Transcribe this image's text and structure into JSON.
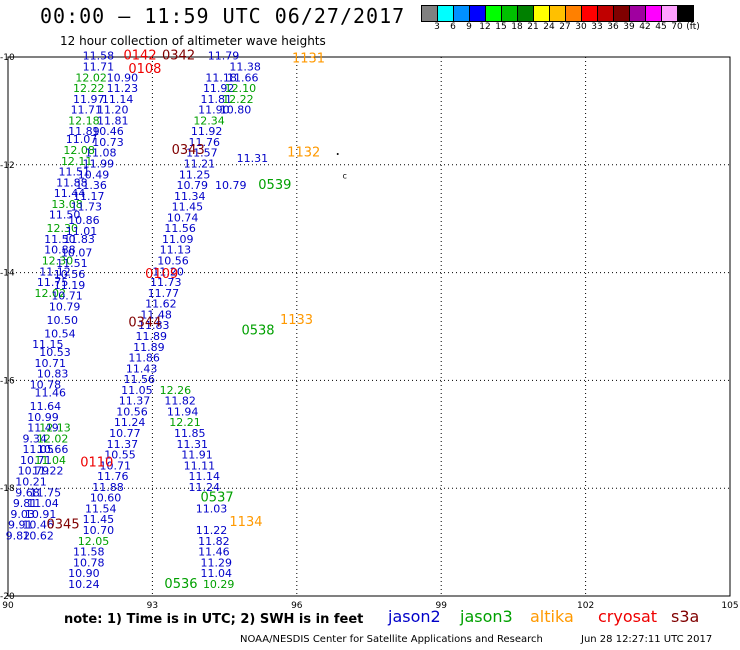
{
  "header": {
    "title": "00:00 – 11:59 UTC 06/27/2017",
    "subtitle": "12 hour collection of altimeter wave heights"
  },
  "color_scale": {
    "colors": [
      "#808080",
      "#00ffff",
      "#0090ff",
      "#0000ff",
      "#00ff00",
      "#00c000",
      "#008000",
      "#ffff00",
      "#ffc000",
      "#ff8000",
      "#ff0000",
      "#c00000",
      "#800000",
      "#a000a0",
      "#ff00ff",
      "#ffa0ff",
      "#000000"
    ],
    "labels": [
      "3",
      "6",
      "9",
      "12",
      "15",
      "18",
      "21",
      "24",
      "27",
      "30",
      "33",
      "36",
      "39",
      "42",
      "45",
      "70",
      "(ft)"
    ]
  },
  "axes": {
    "lon_ticks": [
      "90",
      "93",
      "96",
      "99",
      "102",
      "105"
    ],
    "lat_ticks": [
      "-10",
      "-12",
      "-14",
      "-16",
      "-18",
      "-20"
    ]
  },
  "satellites": {
    "jason2": {
      "label": "jason2",
      "color": "#0000c8"
    },
    "jason3": {
      "label": "jason3",
      "color": "#00a000"
    },
    "altika": {
      "label": "altika",
      "color": "#ff9900"
    },
    "cryosat": {
      "label": "cryosat",
      "color": "#ee0000"
    },
    "s3a": {
      "label": "s3a",
      "color": "#800000"
    }
  },
  "pass_times": [
    {
      "text": "0142",
      "lon": 92.4,
      "lat": -10.05,
      "sat": "cryosat"
    },
    {
      "text": "0342",
      "lon": 93.2,
      "lat": -10.05,
      "sat": "s3a"
    },
    {
      "text": "0108",
      "lon": 92.5,
      "lat": -10.3,
      "sat": "cryosat"
    },
    {
      "text": "1131",
      "lon": 95.9,
      "lat": -10.1,
      "sat": "altika"
    },
    {
      "text": "0343",
      "lon": 93.4,
      "lat": -11.8,
      "sat": "s3a"
    },
    {
      "text": "1132",
      "lon": 95.8,
      "lat": -11.85,
      "sat": "altika"
    },
    {
      "text": "0539",
      "lon": 95.2,
      "lat": -12.45,
      "sat": "jason3"
    },
    {
      "text": "0109",
      "lon": 92.85,
      "lat": -14.1,
      "sat": "cryosat"
    },
    {
      "text": "0344",
      "lon": 92.5,
      "lat": -15.0,
      "sat": "s3a"
    },
    {
      "text": "1133",
      "lon": 95.65,
      "lat": -14.95,
      "sat": "altika"
    },
    {
      "text": "0538",
      "lon": 94.85,
      "lat": -15.15,
      "sat": "jason3"
    },
    {
      "text": "0110",
      "lon": 91.5,
      "lat": -17.6,
      "sat": "cryosat"
    },
    {
      "text": "0537",
      "lon": 94.0,
      "lat": -18.25,
      "sat": "jason3"
    },
    {
      "text": "0345",
      "lon": 90.8,
      "lat": -18.75,
      "sat": "s3a"
    },
    {
      "text": "1134",
      "lon": 94.6,
      "lat": -18.7,
      "sat": "altika"
    },
    {
      "text": "0536",
      "lon": 93.25,
      "lat": -19.85,
      "sat": "jason3"
    }
  ],
  "wave_heights": [
    {
      "v": "11.58",
      "lon": 91.55,
      "lat": -10.05,
      "sat": "jason2"
    },
    {
      "v": "11.71",
      "lon": 91.55,
      "lat": -10.25,
      "sat": "jason2"
    },
    {
      "v": "12.02",
      "lon": 91.4,
      "lat": -10.45,
      "sat": "jason3"
    },
    {
      "v": "10.90",
      "lon": 92.05,
      "lat": -10.45,
      "sat": "jason2"
    },
    {
      "v": "12.22",
      "lon": 91.35,
      "lat": -10.65,
      "sat": "jason3"
    },
    {
      "v": "11.23",
      "lon": 92.05,
      "lat": -10.65,
      "sat": "jason2"
    },
    {
      "v": "11.97",
      "lon": 91.35,
      "lat": -10.85,
      "sat": "jason2"
    },
    {
      "v": "11.14",
      "lon": 91.95,
      "lat": -10.85,
      "sat": "jason2"
    },
    {
      "v": "11.71",
      "lon": 91.3,
      "lat": -11.05,
      "sat": "jason2"
    },
    {
      "v": "11.20",
      "lon": 91.85,
      "lat": -11.05,
      "sat": "jason2"
    },
    {
      "v": "12.18",
      "lon": 91.25,
      "lat": -11.25,
      "sat": "jason3"
    },
    {
      "v": "11.81",
      "lon": 91.85,
      "lat": -11.25,
      "sat": "jason2"
    },
    {
      "v": "11.89",
      "lon": 91.25,
      "lat": -11.45,
      "sat": "jason2"
    },
    {
      "v": "10.46",
      "lon": 91.75,
      "lat": -11.45,
      "sat": "jason2"
    },
    {
      "v": "11.07",
      "lon": 91.2,
      "lat": -11.6,
      "sat": "jason2"
    },
    {
      "v": "10.73",
      "lon": 91.75,
      "lat": -11.65,
      "sat": "jason2"
    },
    {
      "v": "12.08",
      "lon": 91.15,
      "lat": -11.8,
      "sat": "jason3"
    },
    {
      "v": "11.08",
      "lon": 91.6,
      "lat": -11.85,
      "sat": "jason2"
    },
    {
      "v": "12.11",
      "lon": 91.1,
      "lat": -12.0,
      "sat": "jason3"
    },
    {
      "v": "11.99",
      "lon": 91.55,
      "lat": -12.05,
      "sat": "jason2"
    },
    {
      "v": "11.51",
      "lon": 91.05,
      "lat": -12.2,
      "sat": "jason2"
    },
    {
      "v": "10.49",
      "lon": 91.45,
      "lat": -12.25,
      "sat": "jason2"
    },
    {
      "v": "11.88",
      "lon": 91.0,
      "lat": -12.4,
      "sat": "jason2"
    },
    {
      "v": "11.36",
      "lon": 91.4,
      "lat": -12.45,
      "sat": "jason2"
    },
    {
      "v": "11.44",
      "lon": 90.95,
      "lat": -12.6,
      "sat": "jason2"
    },
    {
      "v": "11.17",
      "lon": 91.35,
      "lat": -12.65,
      "sat": "jason2"
    },
    {
      "v": "13.08",
      "lon": 90.9,
      "lat": -12.8,
      "sat": "jason3"
    },
    {
      "v": "11.73",
      "lon": 91.3,
      "lat": -12.85,
      "sat": "jason2"
    },
    {
      "v": "11.50",
      "lon": 90.85,
      "lat": -13.0,
      "sat": "jason2"
    },
    {
      "v": "10.86",
      "lon": 91.25,
      "lat": -13.1,
      "sat": "jason2"
    },
    {
      "v": "12.30",
      "lon": 90.8,
      "lat": -13.25,
      "sat": "jason3"
    },
    {
      "v": "11.01",
      "lon": 91.2,
      "lat": -13.3,
      "sat": "jason2"
    },
    {
      "v": "11.50",
      "lon": 90.75,
      "lat": -13.45,
      "sat": "jason2"
    },
    {
      "v": "11.83",
      "lon": 91.15,
      "lat": -13.45,
      "sat": "jason2"
    },
    {
      "v": "10.88",
      "lon": 90.75,
      "lat": -13.65,
      "sat": "jason2"
    },
    {
      "v": "10.07",
      "lon": 91.1,
      "lat": -13.7,
      "sat": "jason2"
    },
    {
      "v": "12.30",
      "lon": 90.7,
      "lat": -13.85,
      "sat": "jason3"
    },
    {
      "v": "11.51",
      "lon": 91.0,
      "lat": -13.9,
      "sat": "jason2"
    },
    {
      "v": "11.12",
      "lon": 90.65,
      "lat": -14.05,
      "sat": "jason2"
    },
    {
      "v": "10.56",
      "lon": 90.95,
      "lat": -14.1,
      "sat": "jason2"
    },
    {
      "v": "11.75",
      "lon": 90.6,
      "lat": -14.25,
      "sat": "jason2"
    },
    {
      "v": "11.19",
      "lon": 90.95,
      "lat": -14.3,
      "sat": "jason2"
    },
    {
      "v": "12.02",
      "lon": 90.55,
      "lat": -14.45,
      "sat": "jason3"
    },
    {
      "v": "10.71",
      "lon": 90.9,
      "lat": -14.5,
      "sat": "jason2"
    },
    {
      "v": "10.79",
      "lon": 90.85,
      "lat": -14.7,
      "sat": "jason2"
    },
    {
      "v": "10.50",
      "lon": 90.8,
      "lat": -14.95,
      "sat": "jason2"
    },
    {
      "v": "10.54",
      "lon": 90.75,
      "lat": -15.2,
      "sat": "jason2"
    },
    {
      "v": "11.15",
      "lon": 90.5,
      "lat": -15.4,
      "sat": "jason2"
    },
    {
      "v": "10.53",
      "lon": 90.65,
      "lat": -15.55,
      "sat": "jason2"
    },
    {
      "v": "10.71",
      "lon": 90.55,
      "lat": -15.75,
      "sat": "jason2"
    },
    {
      "v": "10.83",
      "lon": 90.6,
      "lat": -15.95,
      "sat": "jason2"
    },
    {
      "v": "10.78",
      "lon": 90.45,
      "lat": -16.15,
      "sat": "jason2"
    },
    {
      "v": "11.46",
      "lon": 90.55,
      "lat": -16.3,
      "sat": "jason2"
    },
    {
      "v": "11.64",
      "lon": 90.45,
      "lat": -16.55,
      "sat": "jason2"
    },
    {
      "v": "10.99",
      "lon": 90.4,
      "lat": -16.75,
      "sat": "jason2"
    },
    {
      "v": "11.49",
      "lon": 90.4,
      "lat": -16.95,
      "sat": "jason2"
    },
    {
      "v": "12.13",
      "lon": 90.65,
      "lat": -16.95,
      "sat": "jason3"
    },
    {
      "v": "9.34",
      "lon": 90.3,
      "lat": -17.15,
      "sat": "jason2"
    },
    {
      "v": "12.02",
      "lon": 90.6,
      "lat": -17.15,
      "sat": "jason3"
    },
    {
      "v": "11.05",
      "lon": 90.3,
      "lat": -17.35,
      "sat": "jason2"
    },
    {
      "v": "10.66",
      "lon": 90.6,
      "lat": -17.35,
      "sat": "jason2"
    },
    {
      "v": "10.71",
      "lon": 90.25,
      "lat": -17.55,
      "sat": "jason2"
    },
    {
      "v": "11.04",
      "lon": 90.55,
      "lat": -17.55,
      "sat": "jason3"
    },
    {
      "v": "10.79",
      "lon": 90.2,
      "lat": -17.75,
      "sat": "jason2"
    },
    {
      "v": "11.22",
      "lon": 90.5,
      "lat": -17.75,
      "sat": "jason2"
    },
    {
      "v": "10.21",
      "lon": 90.15,
      "lat": -17.95,
      "sat": "jason2"
    },
    {
      "v": "9.68",
      "lon": 90.15,
      "lat": -18.15,
      "sat": "jason2"
    },
    {
      "v": "11.75",
      "lon": 90.45,
      "lat": -18.15,
      "sat": "jason2"
    },
    {
      "v": "9.81",
      "lon": 90.1,
      "lat": -18.35,
      "sat": "jason2"
    },
    {
      "v": "11.04",
      "lon": 90.4,
      "lat": -18.35,
      "sat": "jason2"
    },
    {
      "v": "9.03",
      "lon": 90.05,
      "lat": -18.55,
      "sat": "jason2"
    },
    {
      "v": "10.91",
      "lon": 90.35,
      "lat": -18.55,
      "sat": "jason2"
    },
    {
      "v": "9.91",
      "lon": 90.0,
      "lat": -18.75,
      "sat": "jason2"
    },
    {
      "v": "10.46",
      "lon": 90.3,
      "lat": -18.75,
      "sat": "jason2"
    },
    {
      "v": "9.82",
      "lon": 89.95,
      "lat": -18.95,
      "sat": "jason2"
    },
    {
      "v": "10.62",
      "lon": 90.3,
      "lat": -18.95,
      "sat": "jason2"
    },
    {
      "v": "10.24",
      "lon": 91.25,
      "lat": -19.85,
      "sat": "jason2"
    },
    {
      "v": "10.90",
      "lon": 91.25,
      "lat": -19.65,
      "sat": "jason2"
    },
    {
      "v": "10.78",
      "lon": 91.35,
      "lat": -19.45,
      "sat": "jason2"
    },
    {
      "v": "11.58",
      "lon": 91.35,
      "lat": -19.25,
      "sat": "jason2"
    },
    {
      "v": "12.05",
      "lon": 91.45,
      "lat": -19.05,
      "sat": "jason3"
    },
    {
      "v": "10.70",
      "lon": 91.55,
      "lat": -18.85,
      "sat": "jason2"
    },
    {
      "v": "11.45",
      "lon": 91.55,
      "lat": -18.65,
      "sat": "jason2"
    },
    {
      "v": "11.54",
      "lon": 91.6,
      "lat": -18.45,
      "sat": "jason2"
    },
    {
      "v": "10.60",
      "lon": 91.7,
      "lat": -18.25,
      "sat": "jason2"
    },
    {
      "v": "11.88",
      "lon": 91.75,
      "lat": -18.05,
      "sat": "jason2"
    },
    {
      "v": "11.76",
      "lon": 91.85,
      "lat": -17.85,
      "sat": "jason2"
    },
    {
      "v": "10.71",
      "lon": 91.9,
      "lat": -17.65,
      "sat": "jason2"
    },
    {
      "v": "10.55",
      "lon": 92.0,
      "lat": -17.45,
      "sat": "jason2"
    },
    {
      "v": "11.37",
      "lon": 92.05,
      "lat": -17.25,
      "sat": "jason2"
    },
    {
      "v": "10.77",
      "lon": 92.1,
      "lat": -17.05,
      "sat": "jason2"
    },
    {
      "v": "11.24",
      "lon": 92.2,
      "lat": -16.85,
      "sat": "jason2"
    },
    {
      "v": "10.56",
      "lon": 92.25,
      "lat": -16.65,
      "sat": "jason2"
    },
    {
      "v": "11.37",
      "lon": 92.3,
      "lat": -16.45,
      "sat": "jason2"
    },
    {
      "v": "11.05",
      "lon": 92.35,
      "lat": -16.25,
      "sat": "jason2"
    },
    {
      "v": "11.56",
      "lon": 92.4,
      "lat": -16.05,
      "sat": "jason2"
    },
    {
      "v": "11.43",
      "lon": 92.45,
      "lat": -15.85,
      "sat": "jason2"
    },
    {
      "v": "11.86",
      "lon": 92.5,
      "lat": -15.65,
      "sat": "jason2"
    },
    {
      "v": "11.89",
      "lon": 92.6,
      "lat": -15.45,
      "sat": "jason2"
    },
    {
      "v": "11.89",
      "lon": 92.65,
      "lat": -15.25,
      "sat": "jason2"
    },
    {
      "v": "11.83",
      "lon": 92.7,
      "lat": -15.05,
      "sat": "jason2"
    },
    {
      "v": "11.48",
      "lon": 92.75,
      "lat": -14.85,
      "sat": "jason2"
    },
    {
      "v": "11.62",
      "lon": 92.85,
      "lat": -14.65,
      "sat": "jason2"
    },
    {
      "v": "11.77",
      "lon": 92.9,
      "lat": -14.45,
      "sat": "jason2"
    },
    {
      "v": "11.73",
      "lon": 92.95,
      "lat": -14.25,
      "sat": "jason2"
    },
    {
      "v": "11.20",
      "lon": 93.0,
      "lat": -14.05,
      "sat": "jason2"
    },
    {
      "v": "10.56",
      "lon": 93.1,
      "lat": -13.85,
      "sat": "jason2"
    },
    {
      "v": "11.13",
      "lon": 93.15,
      "lat": -13.65,
      "sat": "jason2"
    },
    {
      "v": "11.09",
      "lon": 93.2,
      "lat": -13.45,
      "sat": "jason2"
    },
    {
      "v": "11.56",
      "lon": 93.25,
      "lat": -13.25,
      "sat": "jason2"
    },
    {
      "v": "10.74",
      "lon": 93.3,
      "lat": -13.05,
      "sat": "jason2"
    },
    {
      "v": "11.45",
      "lon": 93.4,
      "lat": -12.85,
      "sat": "jason2"
    },
    {
      "v": "11.34",
      "lon": 93.45,
      "lat": -12.65,
      "sat": "jason2"
    },
    {
      "v": "10.79",
      "lon": 93.5,
      "lat": -12.45,
      "sat": "jason2"
    },
    {
      "v": "11.25",
      "lon": 93.55,
      "lat": -12.25,
      "sat": "jason2"
    },
    {
      "v": "11.21",
      "lon": 93.65,
      "lat": -12.05,
      "sat": "jason2"
    },
    {
      "v": "11.57",
      "lon": 93.7,
      "lat": -11.85,
      "sat": "jason2"
    },
    {
      "v": "11.76",
      "lon": 93.75,
      "lat": -11.65,
      "sat": "jason2"
    },
    {
      "v": "11.92",
      "lon": 93.8,
      "lat": -11.45,
      "sat": "jason2"
    },
    {
      "v": "12.34",
      "lon": 93.85,
      "lat": -11.25,
      "sat": "jason3"
    },
    {
      "v": "11.90",
      "lon": 93.95,
      "lat": -11.05,
      "sat": "jason2"
    },
    {
      "v": "11.81",
      "lon": 94.0,
      "lat": -10.85,
      "sat": "jason2"
    },
    {
      "v": "11.92",
      "lon": 94.05,
      "lat": -10.65,
      "sat": "jason2"
    },
    {
      "v": "11.18",
      "lon": 94.1,
      "lat": -10.45,
      "sat": "jason2"
    },
    {
      "v": "11.79",
      "lon": 94.15,
      "lat": -10.05,
      "sat": "jason2"
    },
    {
      "v": "11.38",
      "lon": 94.6,
      "lat": -10.25,
      "sat": "jason2"
    },
    {
      "v": "11.66",
      "lon": 94.55,
      "lat": -10.45,
      "sat": "jason2"
    },
    {
      "v": "12.10",
      "lon": 94.5,
      "lat": -10.65,
      "sat": "jason3"
    },
    {
      "v": "12.22",
      "lon": 94.45,
      "lat": -10.85,
      "sat": "jason3"
    },
    {
      "v": "10.80",
      "lon": 94.4,
      "lat": -11.05,
      "sat": "jason2"
    },
    {
      "v": "11.31",
      "lon": 94.75,
      "lat": -11.95,
      "sat": "jason2"
    },
    {
      "v": "10.79",
      "lon": 94.3,
      "lat": -12.45,
      "sat": "jason2"
    },
    {
      "v": "11.03",
      "lon": 93.9,
      "lat": -18.45,
      "sat": "jason2"
    },
    {
      "v": "11.22",
      "lon": 93.9,
      "lat": -18.85,
      "sat": "jason2"
    },
    {
      "v": "11.82",
      "lon": 93.95,
      "lat": -19.05,
      "sat": "jason2"
    },
    {
      "v": "11.46",
      "lon": 93.95,
      "lat": -19.25,
      "sat": "jason2"
    },
    {
      "v": "11.29",
      "lon": 94.0,
      "lat": -19.45,
      "sat": "jason2"
    },
    {
      "v": "11.04",
      "lon": 94.0,
      "lat": -19.65,
      "sat": "jason2"
    },
    {
      "v": "10.29",
      "lon": 94.05,
      "lat": -19.85,
      "sat": "jason3"
    },
    {
      "v": "11.24",
      "lon": 93.75,
      "lat": -18.05,
      "sat": "jason2"
    },
    {
      "v": "11.14",
      "lon": 93.75,
      "lat": -17.85,
      "sat": "jason2"
    },
    {
      "v": "11.11",
      "lon": 93.65,
      "lat": -17.65,
      "sat": "jason2"
    },
    {
      "v": "11.91",
      "lon": 93.6,
      "lat": -17.45,
      "sat": "jason2"
    },
    {
      "v": "11.31",
      "lon": 93.5,
      "lat": -17.25,
      "sat": "jason2"
    },
    {
      "v": "11.85",
      "lon": 93.45,
      "lat": -17.05,
      "sat": "jason2"
    },
    {
      "v": "12.21",
      "lon": 93.35,
      "lat": -16.85,
      "sat": "jason3"
    },
    {
      "v": "11.94",
      "lon": 93.3,
      "lat": -16.65,
      "sat": "jason2"
    },
    {
      "v": "11.82",
      "lon": 93.25,
      "lat": -16.45,
      "sat": "jason2"
    },
    {
      "v": "12.26",
      "lon": 93.15,
      "lat": -16.25,
      "sat": "jason3"
    }
  ],
  "footer": {
    "note": "note: 1) Time is in UTC; 2) SWH is in feet",
    "credit": "NOAA/NESDIS Center for Satellite Applications and Research",
    "timestamp": "Jun 28 12:27:11 UTC 2017"
  }
}
